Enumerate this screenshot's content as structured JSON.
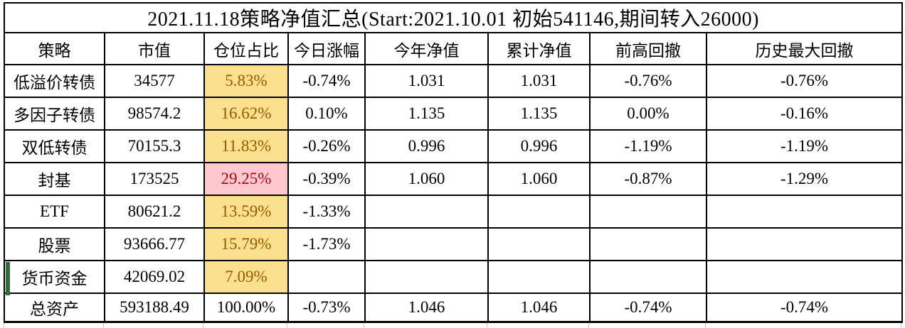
{
  "title": "2021.11.18策略净值汇总(Start:2021.10.01 初始541146,期间转入26000)",
  "columns": [
    "策略",
    "市值",
    "仓位占比",
    "今日涨幅",
    "今年净值",
    "累计净值",
    "前高回撤",
    "历史最大回撤"
  ],
  "rows": [
    {
      "cells": [
        "低溢价转债",
        "34577",
        "5.83%",
        "-0.74%",
        "1.031",
        "1.031",
        "-0.76%",
        "-0.76%"
      ],
      "highlight": "neutral",
      "green_marker": false
    },
    {
      "cells": [
        "多因子转债",
        "98574.2",
        "16.62%",
        "0.10%",
        "1.135",
        "1.135",
        "0.00%",
        "-0.16%"
      ],
      "highlight": "neutral",
      "green_marker": false
    },
    {
      "cells": [
        "双低转债",
        "70155.3",
        "11.83%",
        "-0.26%",
        "0.996",
        "0.996",
        "-1.19%",
        "-1.19%"
      ],
      "highlight": "neutral",
      "green_marker": false
    },
    {
      "cells": [
        "封基",
        "173525",
        "29.25%",
        "-0.39%",
        "1.060",
        "1.060",
        "-0.87%",
        "-1.29%"
      ],
      "highlight": "bad",
      "green_marker": false
    },
    {
      "cells": [
        "ETF",
        "80621.2",
        "13.59%",
        "-1.33%",
        "",
        "",
        "",
        ""
      ],
      "highlight": "neutral",
      "green_marker": false
    },
    {
      "cells": [
        "股票",
        "93666.77",
        "15.79%",
        "-1.73%",
        "",
        "",
        "",
        ""
      ],
      "highlight": "neutral",
      "green_marker": false
    },
    {
      "cells": [
        "货币资金",
        "42069.02",
        "7.09%",
        "",
        "",
        "",
        "",
        ""
      ],
      "highlight": "neutral",
      "green_marker": true
    },
    {
      "cells": [
        "总资产",
        "593188.49",
        "100.00%",
        "-0.73%",
        "1.046",
        "1.046",
        "-0.74%",
        "-0.74%"
      ],
      "highlight": "none",
      "green_marker": false
    }
  ],
  "colors": {
    "warn_bg": "#FBE18E",
    "warn_text": "#9C5700",
    "bad_bg": "#FFC7CE",
    "bad_text": "#B00616",
    "accent_green": "#2F6B3F",
    "border": "#000000",
    "gridline_light": "#c9c9c9"
  }
}
